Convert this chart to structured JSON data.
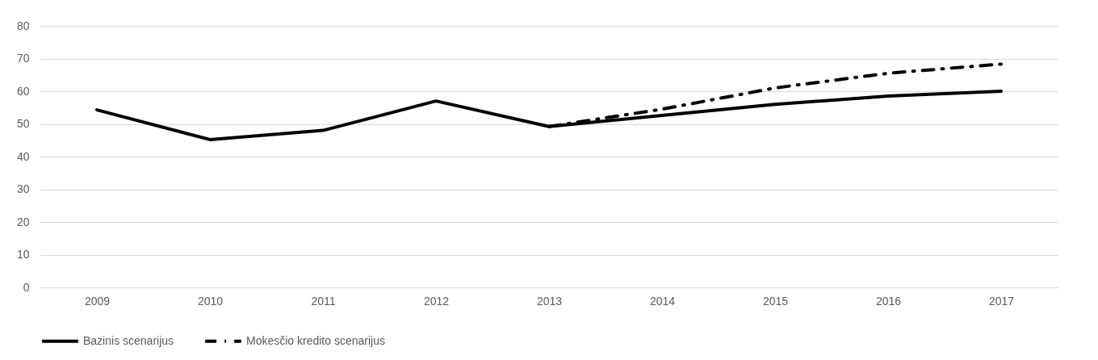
{
  "chart_data": {
    "type": "line",
    "categories": [
      "2009",
      "2010",
      "2011",
      "2012",
      "2013",
      "2014",
      "2015",
      "2016",
      "2017"
    ],
    "series": [
      {
        "name": "Bazinis scenarijus",
        "color": "#000000",
        "line_style": "solid",
        "values": [
          54.3,
          45.2,
          48,
          57,
          49.2,
          52.6,
          56,
          58.5,
          60
        ]
      },
      {
        "name": "Mokesčio kredito scenarijus",
        "color": "#000000",
        "line_style": "dashed",
        "values": [
          null,
          null,
          null,
          null,
          49.2,
          54.5,
          61,
          65.5,
          68.3
        ]
      }
    ],
    "ylim": [
      0,
      80
    ],
    "yticks": [
      0,
      10,
      20,
      30,
      40,
      50,
      60,
      70,
      80
    ],
    "grid": "y",
    "legend": "bottom"
  }
}
